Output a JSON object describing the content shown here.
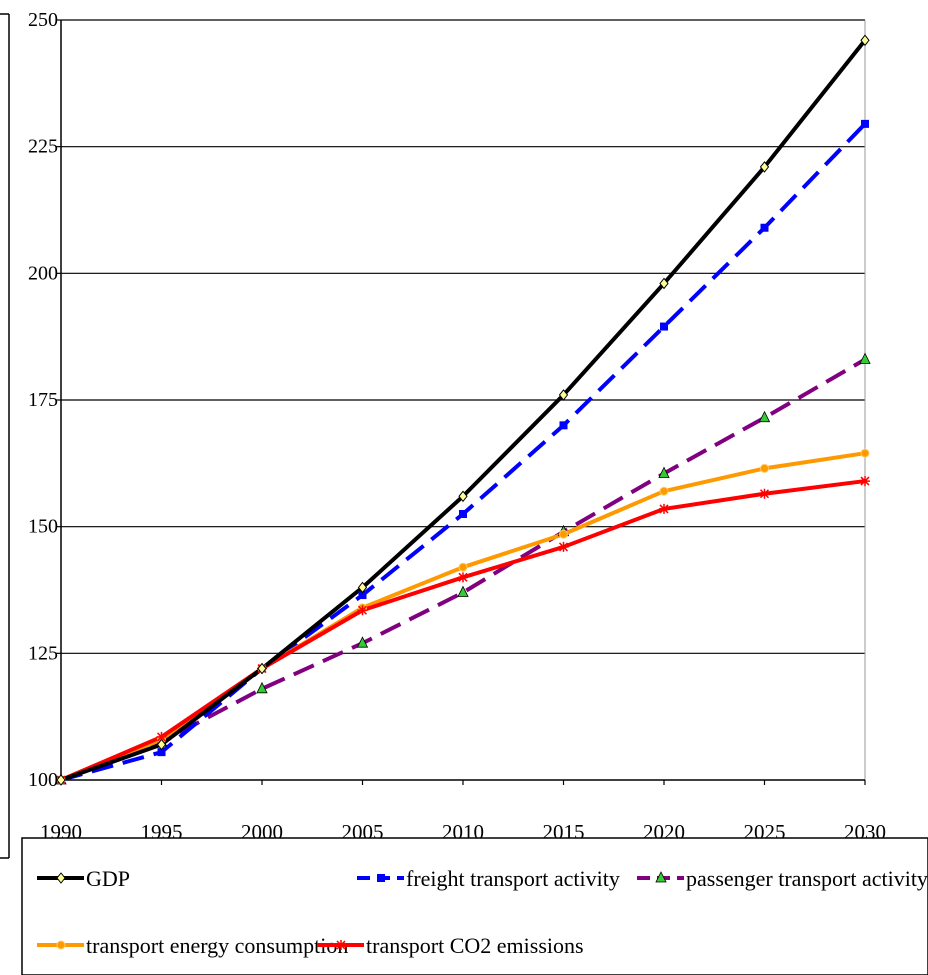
{
  "chart_data": {
    "type": "line",
    "title": "",
    "xlabel": "",
    "ylabel": "",
    "x": [
      1990,
      1995,
      2000,
      2005,
      2010,
      2015,
      2020,
      2025,
      2030
    ],
    "x_tick_labels": [
      "1990",
      "1995",
      "2000",
      "2005",
      "2010",
      "2015",
      "2020",
      "2025",
      "2030"
    ],
    "ylim": [
      100,
      250
    ],
    "y_ticks": [
      100,
      125,
      150,
      175,
      200,
      225,
      250
    ],
    "y_tick_labels": [
      "100",
      "125",
      "150",
      "175",
      "200",
      "225",
      "250"
    ],
    "grid": "horizontal",
    "legend_position": "bottom",
    "series": [
      {
        "name": "GDP",
        "color": "#000000",
        "dash": "solid",
        "marker": "diamond",
        "marker_fill": "#ffff99",
        "values": [
          100,
          107,
          122,
          138,
          156,
          176,
          198,
          221,
          246
        ]
      },
      {
        "name": "freight transport activity",
        "color": "#0000ff",
        "dash": "dashed",
        "marker": "square",
        "marker_fill": "#0000ff",
        "values": [
          100,
          105.5,
          122,
          136.5,
          152.5,
          170,
          189.5,
          209,
          229.5
        ]
      },
      {
        "name": "passenger transport activity",
        "color": "#800080",
        "dash": "dashed",
        "marker": "triangle",
        "marker_fill": "#33cc33",
        "values": [
          100,
          107.5,
          118,
          127,
          137,
          149,
          160.5,
          171.5,
          183
        ]
      },
      {
        "name": "transport energy consumption",
        "color": "#ff9900",
        "dash": "solid",
        "marker": "circle",
        "marker_fill": "#ff9900",
        "values": [
          100,
          108,
          122,
          134,
          142,
          148.5,
          157,
          161.5,
          164.5
        ]
      },
      {
        "name": "transport CO2 emissions",
        "color": "#ff0000",
        "dash": "solid",
        "marker": "star",
        "marker_fill": "#ff0000",
        "values": [
          100,
          108.5,
          122,
          133.5,
          140,
          146,
          153.5,
          156.5,
          159
        ]
      }
    ]
  }
}
